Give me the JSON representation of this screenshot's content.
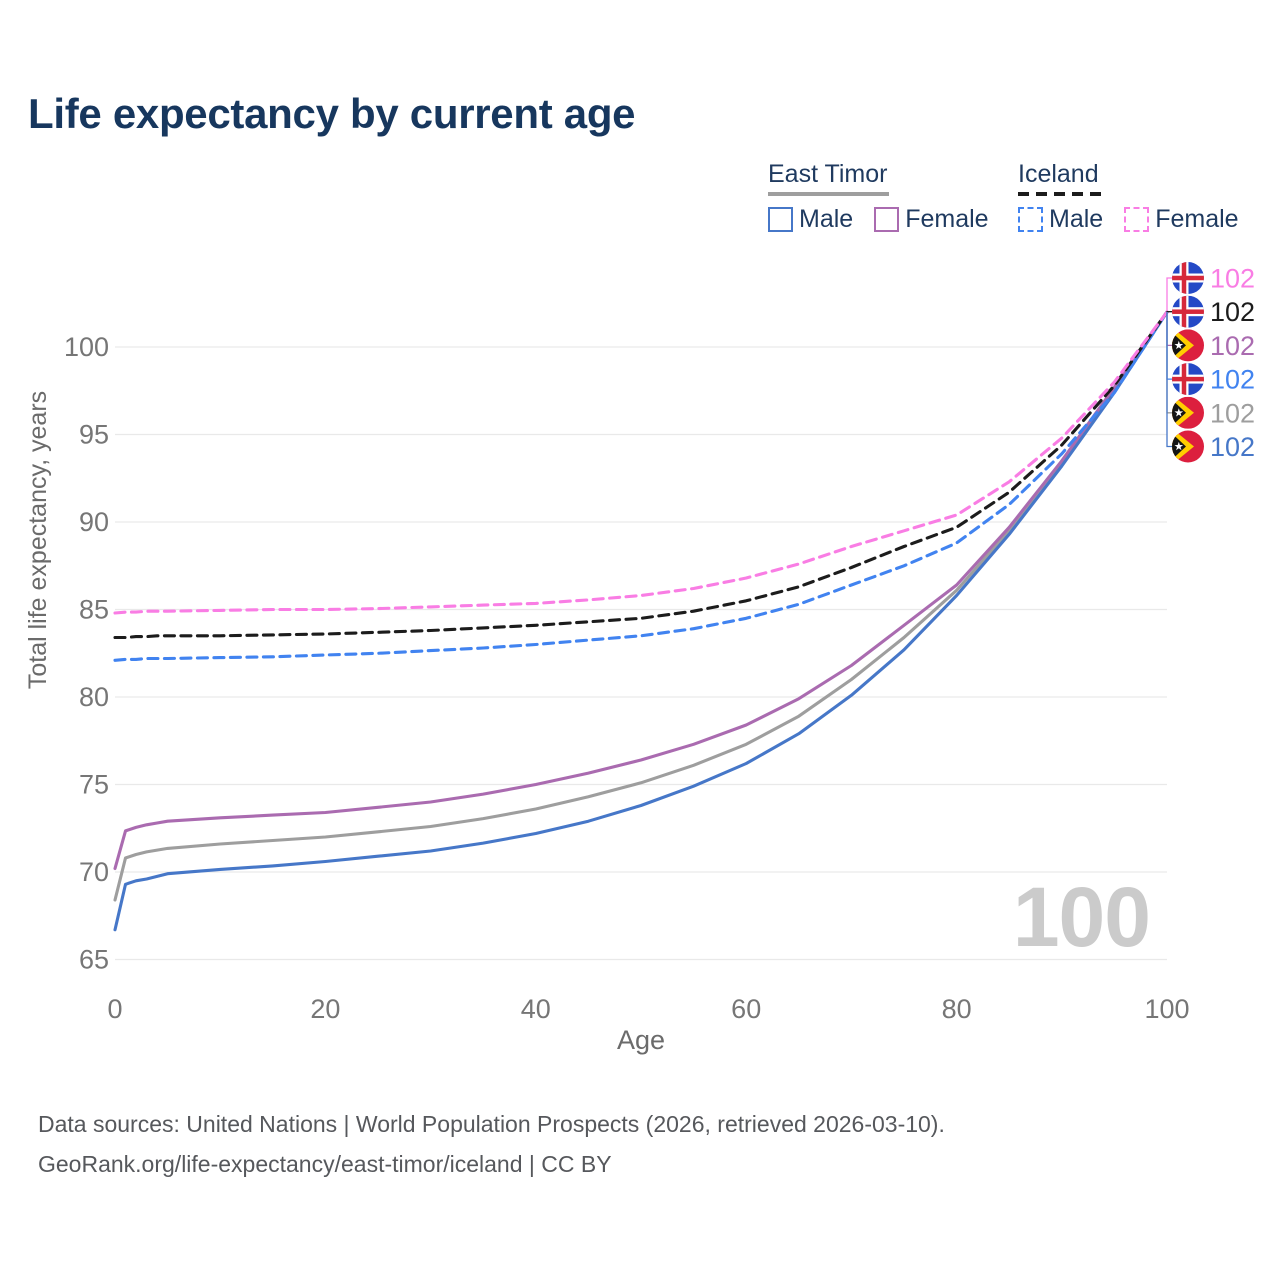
{
  "title": "Life expectancy by current age",
  "legend": {
    "groups": [
      {
        "name": "East Timor",
        "line_style": "solid",
        "underline_color": "#9e9e9e",
        "items": [
          {
            "label": "Male",
            "color": "#4677c8"
          },
          {
            "label": "Female",
            "color": "#aa6bb0"
          }
        ]
      },
      {
        "name": "Iceland",
        "line_style": "dashed",
        "underline_color": "#1c1c1c",
        "items": [
          {
            "label": "Male",
            "color": "#4183f0"
          },
          {
            "label": "Female",
            "color": "#f97de4"
          }
        ]
      }
    ]
  },
  "chart_data": {
    "type": "line",
    "title": "Life expectancy by current age",
    "xlabel": "Age",
    "ylabel": "Total life expectancy, years",
    "xlim": [
      0,
      100
    ],
    "ylim": [
      65,
      102.5
    ],
    "xticks": [
      0,
      20,
      40,
      60,
      80,
      100
    ],
    "yticks": [
      65,
      70,
      75,
      80,
      85,
      90,
      95,
      100
    ],
    "grid": "horizontal-only",
    "legend_position": "top-right",
    "x": [
      0,
      1,
      2,
      3,
      4,
      5,
      10,
      15,
      20,
      25,
      30,
      35,
      40,
      45,
      50,
      55,
      60,
      65,
      70,
      75,
      80,
      85,
      90,
      95,
      100
    ],
    "series": [
      {
        "name": "East Timor Total",
        "country": "east-timor",
        "sex": "total",
        "color": "#9e9e9e",
        "dashed": false,
        "values": [
          68.4,
          70.8,
          71.0,
          71.15,
          71.25,
          71.35,
          71.6,
          71.8,
          72.0,
          72.3,
          72.6,
          73.05,
          73.6,
          74.3,
          75.1,
          76.1,
          77.3,
          78.9,
          81.0,
          83.4,
          86.1,
          89.5,
          93.35,
          97.55,
          102
        ]
      },
      {
        "name": "East Timor Female",
        "country": "east-timor",
        "sex": "female",
        "color": "#aa6bb0",
        "dashed": false,
        "values": [
          70.2,
          72.35,
          72.55,
          72.7,
          72.8,
          72.9,
          73.1,
          73.25,
          73.4,
          73.7,
          74.0,
          74.45,
          75.0,
          75.65,
          76.4,
          77.3,
          78.4,
          79.9,
          81.8,
          84.1,
          86.4,
          89.7,
          93.5,
          97.7,
          102
        ]
      },
      {
        "name": "East Timor Male",
        "country": "east-timor",
        "sex": "male",
        "color": "#4677c8",
        "dashed": false,
        "values": [
          66.7,
          69.3,
          69.5,
          69.6,
          69.75,
          69.9,
          70.15,
          70.35,
          70.6,
          70.9,
          71.2,
          71.65,
          72.2,
          72.9,
          73.8,
          74.9,
          76.2,
          77.9,
          80.1,
          82.7,
          85.8,
          89.3,
          93.2,
          97.4,
          102
        ]
      },
      {
        "name": "Iceland Male",
        "country": "iceland",
        "sex": "male",
        "color": "#4183f0",
        "dashed": true,
        "values": [
          82.1,
          82.15,
          82.15,
          82.2,
          82.2,
          82.2,
          82.25,
          82.3,
          82.4,
          82.5,
          82.65,
          82.8,
          83.0,
          83.25,
          83.5,
          83.9,
          84.5,
          85.3,
          86.4,
          87.5,
          88.8,
          91.0,
          93.9,
          97.4,
          102
        ]
      },
      {
        "name": "Iceland Total",
        "country": "iceland",
        "sex": "total",
        "color": "#1c1c1c",
        "dashed": true,
        "values": [
          83.4,
          83.4,
          83.45,
          83.45,
          83.5,
          83.5,
          83.5,
          83.55,
          83.6,
          83.7,
          83.8,
          83.95,
          84.1,
          84.3,
          84.5,
          84.9,
          85.5,
          86.3,
          87.4,
          88.6,
          89.7,
          91.7,
          94.4,
          97.8,
          102
        ]
      },
      {
        "name": "Iceland Female",
        "country": "iceland",
        "sex": "female",
        "color": "#f97de4",
        "dashed": true,
        "values": [
          84.8,
          84.85,
          84.85,
          84.9,
          84.9,
          84.9,
          84.95,
          85.0,
          85.0,
          85.05,
          85.15,
          85.25,
          85.35,
          85.55,
          85.8,
          86.2,
          86.8,
          87.6,
          88.6,
          89.5,
          90.4,
          92.3,
          94.8,
          98.0,
          102
        ]
      }
    ],
    "end_labels": [
      {
        "flag": "iceland",
        "value": "102",
        "color": "#f97de4"
      },
      {
        "flag": "iceland",
        "value": "102",
        "color": "#1c1c1c"
      },
      {
        "flag": "east-timor",
        "value": "102",
        "color": "#aa6bb0"
      },
      {
        "flag": "iceland",
        "value": "102",
        "color": "#4183f0"
      },
      {
        "flag": "east-timor",
        "value": "102",
        "color": "#9e9e9e"
      },
      {
        "flag": "east-timor",
        "value": "102",
        "color": "#4677c8"
      }
    ],
    "watermark": "100"
  },
  "footer": {
    "line1": "Data sources: United Nations | World Population Prospects (2026, retrieved 2026-03-10).",
    "line2": "GeoRank.org/life-expectancy/east-timor/iceland | CC BY"
  },
  "colors": {
    "title_text": "#17375e",
    "legend_text": "#1f3a5f",
    "tick_text": "#767676",
    "axis_title_text": "#6b6b6b",
    "gridline": "#e9e9e9",
    "footer_text": "#56585c",
    "watermark": "#cbcbcb",
    "iceland_flag_blue": "#2449c6",
    "iceland_flag_red": "#d6283a",
    "east_timor_flag_red": "#dc1f3e",
    "east_timor_flag_yellow": "#ffce00"
  }
}
